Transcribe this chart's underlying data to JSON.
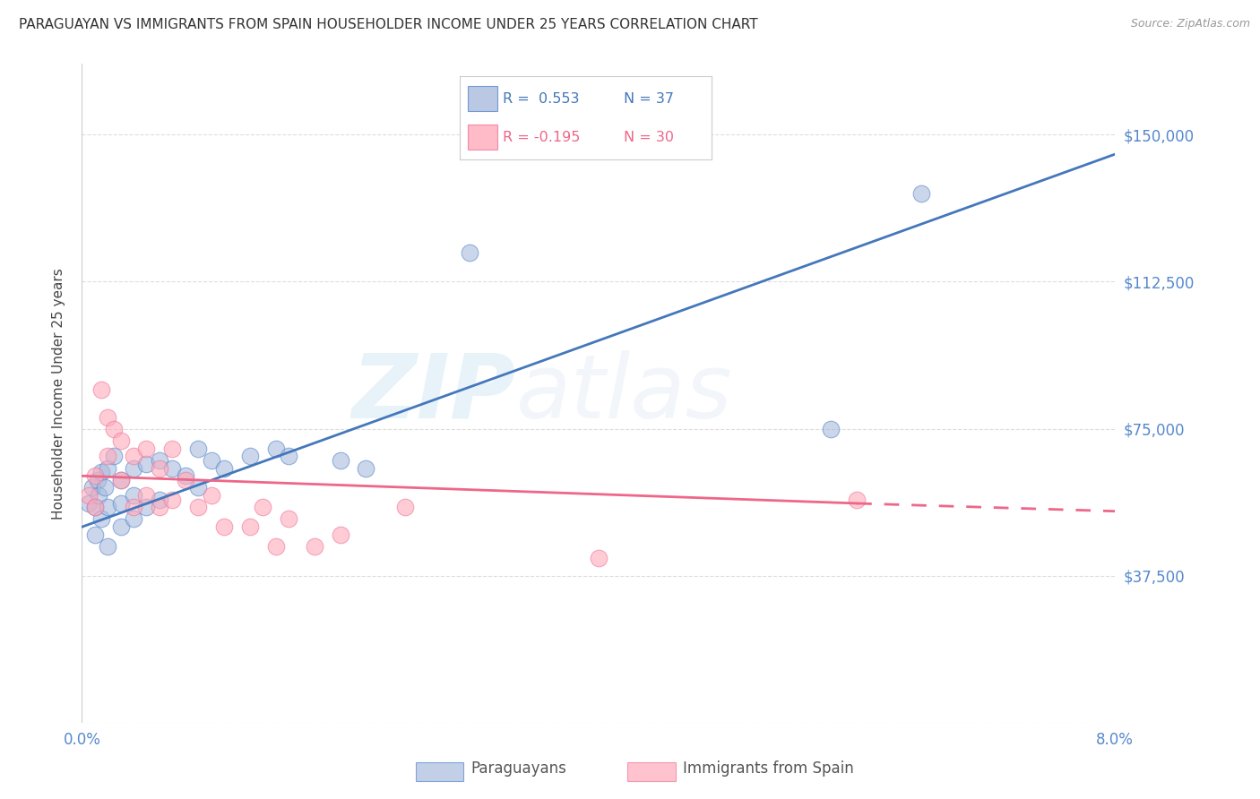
{
  "title": "PARAGUAYAN VS IMMIGRANTS FROM SPAIN HOUSEHOLDER INCOME UNDER 25 YEARS CORRELATION CHART",
  "source": "Source: ZipAtlas.com",
  "ylabel": "Householder Income Under 25 years",
  "yticks": [
    0,
    37500,
    75000,
    112500,
    150000
  ],
  "ytick_labels": [
    "",
    "$37,500",
    "$75,000",
    "$112,500",
    "$150,000"
  ],
  "xmin": 0.0,
  "xmax": 0.08,
  "ymin": 22000,
  "ymax": 168000,
  "watermark_zip": "ZIP",
  "watermark_atlas": "atlas",
  "legend_r1": "R =  0.553",
  "legend_n1": "N = 37",
  "legend_r2": "R = -0.195",
  "legend_n2": "N = 30",
  "blue_fill": "#AABBDD",
  "pink_fill": "#FFAABB",
  "blue_edge": "#5588CC",
  "pink_edge": "#EE7799",
  "blue_line": "#4477BB",
  "pink_line": "#EE6688",
  "paraguayan_x": [
    0.0005,
    0.0008,
    0.001,
    0.001,
    0.0012,
    0.0013,
    0.0015,
    0.0015,
    0.0018,
    0.002,
    0.002,
    0.002,
    0.0025,
    0.003,
    0.003,
    0.003,
    0.004,
    0.004,
    0.004,
    0.005,
    0.005,
    0.006,
    0.006,
    0.007,
    0.008,
    0.009,
    0.009,
    0.01,
    0.011,
    0.013,
    0.015,
    0.016,
    0.02,
    0.022,
    0.03,
    0.058,
    0.065
  ],
  "paraguayan_y": [
    56000,
    60000,
    55000,
    48000,
    62000,
    58000,
    64000,
    52000,
    60000,
    65000,
    55000,
    45000,
    68000,
    62000,
    56000,
    50000,
    65000,
    58000,
    52000,
    66000,
    55000,
    67000,
    57000,
    65000,
    63000,
    70000,
    60000,
    67000,
    65000,
    68000,
    70000,
    68000,
    67000,
    65000,
    120000,
    75000,
    135000
  ],
  "spain_x": [
    0.0005,
    0.001,
    0.001,
    0.0015,
    0.002,
    0.002,
    0.0025,
    0.003,
    0.003,
    0.004,
    0.004,
    0.005,
    0.005,
    0.006,
    0.006,
    0.007,
    0.007,
    0.008,
    0.009,
    0.01,
    0.011,
    0.013,
    0.014,
    0.015,
    0.016,
    0.018,
    0.02,
    0.025,
    0.04,
    0.06
  ],
  "spain_y": [
    58000,
    63000,
    55000,
    85000,
    78000,
    68000,
    75000,
    72000,
    62000,
    68000,
    55000,
    70000,
    58000,
    65000,
    55000,
    70000,
    57000,
    62000,
    55000,
    58000,
    50000,
    50000,
    55000,
    45000,
    52000,
    45000,
    48000,
    55000,
    42000,
    57000
  ],
  "blue_line_x0": 0.0,
  "blue_line_y0": 50000,
  "blue_line_x1": 0.08,
  "blue_line_y1": 145000,
  "pink_line_x0": 0.0,
  "pink_line_y0": 63000,
  "pink_line_x1_solid": 0.06,
  "pink_line_y1_solid": 56000,
  "pink_line_x1_dash": 0.08,
  "pink_line_y1_dash": 54000,
  "background_color": "#FFFFFF",
  "grid_color": "#DDDDDD"
}
